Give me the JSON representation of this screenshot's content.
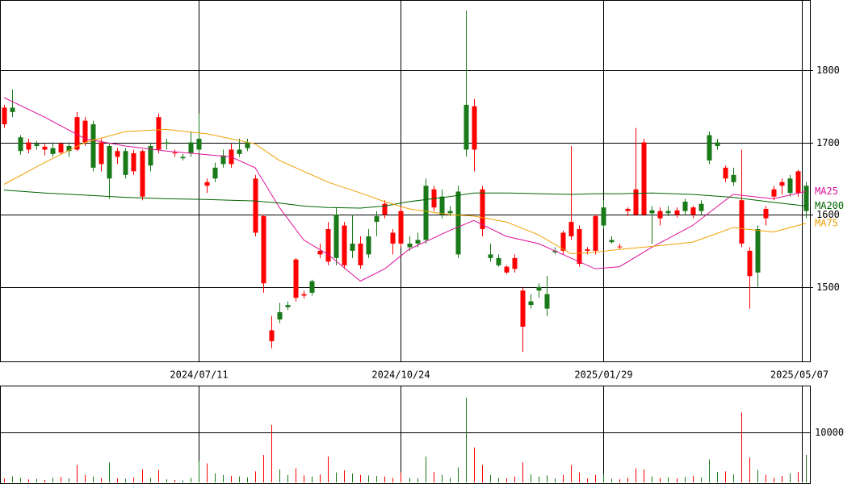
{
  "chart_data": {
    "type": "candlestick",
    "xlim": [
      -0.5,
      99.5
    ],
    "xticks": [
      {
        "value": 24,
        "label": "2024/07/11"
      },
      {
        "value": 49,
        "label": "2024/10/24"
      },
      {
        "value": 74,
        "label": "2025/01/29"
      },
      {
        "value": 98.5,
        "label": "2025/05/07"
      }
    ],
    "ylim": [
      1397,
      1897
    ],
    "yticks": [
      1500,
      1600,
      1700,
      1800
    ],
    "grid": true,
    "up_color": "#ff0000",
    "down_color": "#1a7a1a",
    "ohlc": [
      [
        1725,
        1752,
        1720,
        1748
      ],
      [
        1748,
        1773,
        1735,
        1742
      ],
      [
        1707,
        1710,
        1683,
        1688
      ],
      [
        1690,
        1705,
        1685,
        1700
      ],
      [
        1698,
        1702,
        1690,
        1695
      ],
      [
        1690,
        1698,
        1682,
        1694
      ],
      [
        1692,
        1700,
        1680,
        1684
      ],
      [
        1686,
        1700,
        1684,
        1698
      ],
      [
        1695,
        1700,
        1680,
        1688
      ],
      [
        1690,
        1742,
        1688,
        1735
      ],
      [
        1700,
        1735,
        1695,
        1730
      ],
      [
        1725,
        1730,
        1660,
        1665
      ],
      [
        1670,
        1705,
        1660,
        1700
      ],
      [
        1695,
        1698,
        1622,
        1650
      ],
      [
        1680,
        1692,
        1670,
        1688
      ],
      [
        1688,
        1692,
        1650,
        1655
      ],
      [
        1660,
        1690,
        1655,
        1685
      ],
      [
        1625,
        1690,
        1620,
        1688
      ],
      [
        1695,
        1700,
        1660,
        1668
      ],
      [
        1690,
        1740,
        1685,
        1735
      ],
      [
        1700,
        1705,
        1690,
        1698
      ],
      [
        1685,
        1690,
        1680,
        1686
      ],
      [
        1680,
        1684,
        1675,
        1678
      ],
      [
        1700,
        1715,
        1680,
        1685
      ],
      [
        1705,
        1740,
        1685,
        1690
      ],
      [
        1640,
        1650,
        1630,
        1645
      ],
      [
        1665,
        1672,
        1645,
        1650
      ],
      [
        1682,
        1690,
        1665,
        1670
      ],
      [
        1670,
        1698,
        1665,
        1690
      ],
      [
        1690,
        1705,
        1680,
        1684
      ],
      [
        1700,
        1705,
        1688,
        1692
      ],
      [
        1575,
        1655,
        1570,
        1650
      ],
      [
        1505,
        1600,
        1492,
        1598
      ],
      [
        1425,
        1460,
        1415,
        1440
      ],
      [
        1465,
        1478,
        1450,
        1455
      ],
      [
        1475,
        1480,
        1468,
        1472
      ],
      [
        1485,
        1540,
        1480,
        1538
      ],
      [
        1488,
        1495,
        1484,
        1490
      ],
      [
        1508,
        1510,
        1488,
        1492
      ],
      [
        1545,
        1560,
        1540,
        1550
      ],
      [
        1535,
        1590,
        1530,
        1580
      ],
      [
        1600,
        1610,
        1530,
        1540
      ],
      [
        1530,
        1590,
        1525,
        1585
      ],
      [
        1560,
        1600,
        1540,
        1550
      ],
      [
        1530,
        1570,
        1525,
        1560
      ],
      [
        1570,
        1580,
        1540,
        1545
      ],
      [
        1598,
        1605,
        1570,
        1590
      ],
      [
        1600,
        1620,
        1595,
        1615
      ],
      [
        1560,
        1580,
        1545,
        1575
      ],
      [
        1560,
        1610,
        1555,
        1605
      ],
      [
        1560,
        1570,
        1550,
        1555
      ],
      [
        1565,
        1575,
        1555,
        1560
      ],
      [
        1640,
        1650,
        1560,
        1565
      ],
      [
        1610,
        1640,
        1605,
        1635
      ],
      [
        1625,
        1635,
        1595,
        1600
      ],
      [
        1605,
        1612,
        1598,
        1602
      ],
      [
        1632,
        1640,
        1540,
        1545
      ],
      [
        1752,
        1882,
        1680,
        1690
      ],
      [
        1690,
        1760,
        1660,
        1750
      ],
      [
        1580,
        1640,
        1570,
        1635
      ],
      [
        1545,
        1560,
        1535,
        1540
      ],
      [
        1540,
        1545,
        1528,
        1530
      ],
      [
        1520,
        1530,
        1518,
        1528
      ],
      [
        1525,
        1545,
        1520,
        1540
      ],
      [
        1445,
        1500,
        1410,
        1495
      ],
      [
        1480,
        1490,
        1470,
        1475
      ],
      [
        1500,
        1505,
        1485,
        1495
      ],
      [
        1490,
        1515,
        1460,
        1470
      ],
      [
        1550,
        1555,
        1545,
        1548
      ],
      [
        1550,
        1578,
        1545,
        1575
      ],
      [
        1570,
        1695,
        1565,
        1590
      ],
      [
        1532,
        1585,
        1528,
        1580
      ],
      [
        1550,
        1555,
        1545,
        1552
      ],
      [
        1550,
        1600,
        1545,
        1598
      ],
      [
        1610,
        1620,
        1580,
        1585
      ],
      [
        1565,
        1570,
        1560,
        1562
      ],
      [
        1555,
        1560,
        1552,
        1556
      ],
      [
        1605,
        1610,
        1598,
        1608
      ],
      [
        1600,
        1720,
        1598,
        1635
      ],
      [
        1600,
        1705,
        1598,
        1700
      ],
      [
        1606,
        1612,
        1560,
        1602
      ],
      [
        1595,
        1610,
        1585,
        1605
      ],
      [
        1605,
        1612,
        1598,
        1602
      ],
      [
        1600,
        1610,
        1596,
        1606
      ],
      [
        1618,
        1622,
        1600,
        1605
      ],
      [
        1600,
        1612,
        1595,
        1610
      ],
      [
        1615,
        1620,
        1600,
        1605
      ],
      [
        1710,
        1715,
        1670,
        1675
      ],
      [
        1700,
        1705,
        1690,
        1695
      ],
      [
        1650,
        1668,
        1645,
        1665
      ],
      [
        1655,
        1665,
        1640,
        1645
      ],
      [
        1560,
        1690,
        1555,
        1620
      ],
      [
        1515,
        1555,
        1470,
        1550
      ],
      [
        1580,
        1585,
        1500,
        1520
      ],
      [
        1595,
        1612,
        1585,
        1608
      ],
      [
        1625,
        1640,
        1620,
        1635
      ],
      [
        1640,
        1650,
        1628,
        1645
      ],
      [
        1650,
        1655,
        1625,
        1630
      ],
      [
        1630,
        1662,
        1625,
        1660
      ],
      [
        1640,
        1645,
        1595,
        1605
      ]
    ],
    "series": [
      {
        "name": "MA25",
        "color": "#e0109a",
        "x": [
          0,
          5,
          10,
          15,
          20,
          25,
          28,
          31,
          34,
          37,
          40,
          44,
          47,
          50,
          55,
          58,
          62,
          66,
          70,
          73,
          76,
          80,
          85,
          90,
          95,
          99
        ],
        "values": [
          1762,
          1735,
          1705,
          1695,
          1688,
          1683,
          1680,
          1665,
          1610,
          1565,
          1545,
          1508,
          1525,
          1552,
          1578,
          1592,
          1570,
          1560,
          1540,
          1525,
          1528,
          1555,
          1585,
          1628,
          1622,
          1632
        ]
      },
      {
        "name": "MA200",
        "color": "#006400",
        "x": [
          0,
          5,
          10,
          15,
          20,
          25,
          28,
          31,
          34,
          37,
          40,
          44,
          47,
          50,
          55,
          58,
          62,
          66,
          70,
          73,
          76,
          80,
          85,
          90,
          95,
          99
        ],
        "values": [
          1634,
          1630,
          1627,
          1624,
          1622,
          1621,
          1620,
          1619,
          1616,
          1612,
          1610,
          1609,
          1612,
          1618,
          1625,
          1630,
          1630,
          1629,
          1628,
          1629,
          1629,
          1630,
          1628,
          1624,
          1617,
          1612
        ]
      },
      {
        "name": "MA75",
        "color": "#f0a000",
        "x": [
          0,
          5,
          10,
          15,
          20,
          25,
          28,
          31,
          34,
          37,
          40,
          44,
          47,
          50,
          55,
          58,
          62,
          66,
          70,
          73,
          76,
          80,
          85,
          90,
          95,
          99
        ],
        "values": [
          1642,
          1672,
          1700,
          1715,
          1718,
          1712,
          1705,
          1698,
          1675,
          1660,
          1645,
          1630,
          1618,
          1608,
          1600,
          1598,
          1590,
          1572,
          1546,
          1548,
          1552,
          1556,
          1562,
          1582,
          1576,
          1588
        ]
      }
    ],
    "volume": {
      "ylim": [
        0,
        19400
      ],
      "yticks": [
        10000
      ],
      "values": [
        800,
        1200,
        900,
        600,
        700,
        500,
        900,
        1100,
        800,
        3500,
        1500,
        1200,
        900,
        4000,
        800,
        700,
        1000,
        2600,
        900,
        2500,
        600,
        500,
        400,
        900,
        4300,
        3800,
        1800,
        1500,
        1300,
        1200,
        1000,
        2200,
        5500,
        11500,
        2600,
        1500,
        2800,
        1400,
        1200,
        1600,
        5200,
        2000,
        2400,
        1800,
        1500,
        1400,
        1300,
        1200,
        900,
        2000,
        900,
        800,
        5200,
        2100,
        1500,
        900,
        3000,
        17000,
        7000,
        3500,
        1500,
        900,
        800,
        1200,
        4000,
        1600,
        1200,
        1400,
        800,
        1500,
        3500,
        2000,
        800,
        1500,
        1700,
        700,
        600,
        900,
        2800,
        2600,
        1200,
        900,
        1000,
        800,
        1100,
        1300,
        1000,
        4600,
        2100,
        2200,
        1600,
        14000,
        5000,
        2500,
        1500,
        900,
        1300,
        1800,
        2100,
        5500
      ]
    }
  }
}
